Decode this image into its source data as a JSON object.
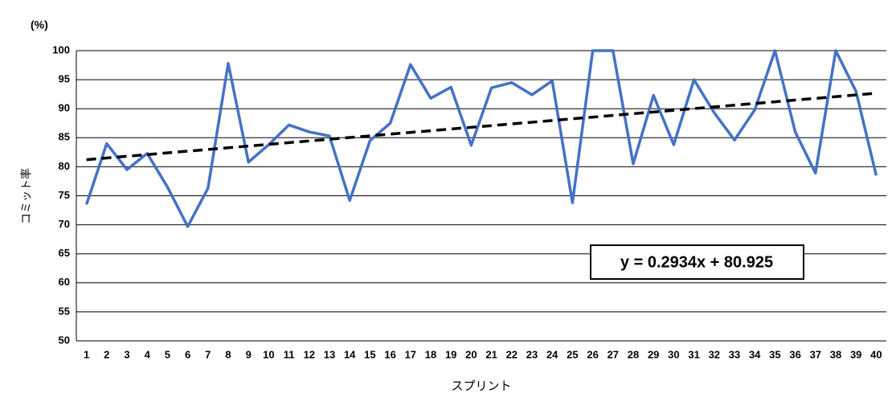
{
  "chart_data": {
    "type": "line",
    "unit_label": "(%)",
    "y_label": "コミット率",
    "x_label": "スプリント",
    "x": [
      1,
      2,
      3,
      4,
      5,
      6,
      7,
      8,
      9,
      10,
      11,
      12,
      13,
      14,
      15,
      16,
      17,
      18,
      19,
      20,
      21,
      22,
      23,
      24,
      25,
      26,
      27,
      28,
      29,
      30,
      31,
      32,
      33,
      34,
      35,
      36,
      37,
      38,
      39,
      40
    ],
    "series": [
      {
        "color": "#4472c4",
        "values": [
          73.5,
          84,
          79.5,
          82.3,
          76.5,
          69.7,
          76.3,
          97.8,
          80.8,
          83.8,
          87.2,
          86,
          85.3,
          74.2,
          84.5,
          87.5,
          97.6,
          91.8,
          93.7,
          83.7,
          93.6,
          94.5,
          92.4,
          94.8,
          73.8,
          100,
          100,
          80.5,
          92.3,
          83.8,
          95,
          89.3,
          84.6,
          89.8,
          100,
          86,
          78.9,
          100,
          93,
          78.5
        ]
      }
    ],
    "trendline": {
      "slope": 0.2934,
      "intercept": 80.925,
      "label": "y = 0.2934x + 80.925",
      "color": "#000000"
    },
    "ylim": [
      50,
      100
    ],
    "yticks": [
      50,
      55,
      60,
      65,
      70,
      75,
      80,
      85,
      90,
      95,
      100
    ],
    "grid": true
  }
}
